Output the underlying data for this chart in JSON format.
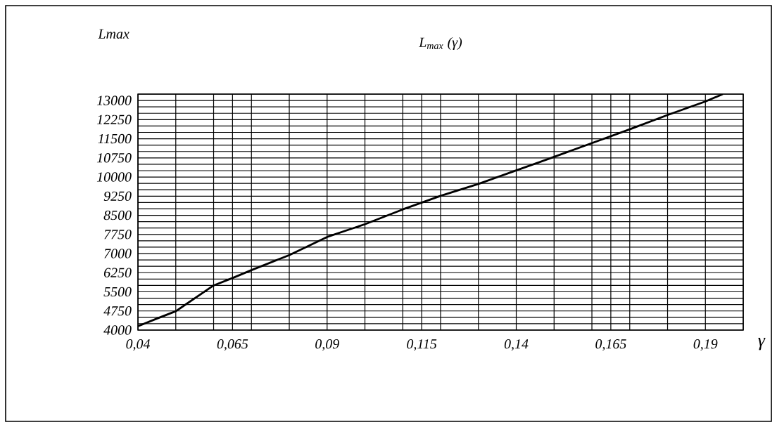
{
  "chart_data": {
    "type": "line",
    "title": "*L*$_{max}$ (*γ*)",
    "ylabel": "Lmax",
    "xlabel": "γ",
    "x": [
      0.04,
      0.045,
      0.05,
      0.06,
      0.065,
      0.07,
      0.08,
      0.09,
      0.1,
      0.11,
      0.12,
      0.13,
      0.14,
      0.15,
      0.16,
      0.17,
      0.18,
      0.19,
      0.1946
    ],
    "series": [
      {
        "color": "#000000",
        "values": [
          4150,
          4450,
          4740,
          5750,
          6040,
          6350,
          6940,
          7650,
          8150,
          8730,
          9260,
          9730,
          10260,
          10790,
          11330,
          11870,
          12430,
          12960,
          13250
        ]
      }
    ],
    "xlim": [
      0.04,
      0.2
    ],
    "ylim": [
      4000,
      13250
    ],
    "xticks": [
      {
        "value": 0.04,
        "label": "0,04"
      },
      {
        "value": 0.05,
        "label": null
      },
      {
        "value": 0.06,
        "label": null
      },
      {
        "value": 0.065,
        "label": "0,065"
      },
      {
        "value": 0.07,
        "label": null
      },
      {
        "value": 0.08,
        "label": null
      },
      {
        "value": 0.09,
        "label": "0,09"
      },
      {
        "value": 0.1,
        "label": null
      },
      {
        "value": 0.11,
        "label": null
      },
      {
        "value": 0.115,
        "label": "0,115"
      },
      {
        "value": 0.12,
        "label": null
      },
      {
        "value": 0.13,
        "label": null
      },
      {
        "value": 0.14,
        "label": "0,14"
      },
      {
        "value": 0.15,
        "label": null
      },
      {
        "value": 0.16,
        "label": null
      },
      {
        "value": 0.165,
        "label": "0,165"
      },
      {
        "value": 0.17,
        "label": null
      },
      {
        "value": 0.18,
        "label": null
      },
      {
        "value": 0.19,
        "label": "0,19"
      },
      {
        "value": 0.2,
        "label": null
      }
    ],
    "yticks": [
      4000,
      {
        "value": 4250,
        "label": null
      },
      {
        "value": 4500,
        "label": null
      },
      4750,
      {
        "value": 5000,
        "label": null
      },
      {
        "value": 5250,
        "label": null
      },
      5500,
      {
        "value": 5750,
        "label": null
      },
      {
        "value": 6000,
        "label": null
      },
      6250,
      {
        "value": 6500,
        "label": null
      },
      {
        "value": 6750,
        "label": null
      },
      7000,
      {
        "value": 7250,
        "label": null
      },
      {
        "value": 7500,
        "label": null
      },
      7750,
      {
        "value": 8000,
        "label": null
      },
      {
        "value": 8250,
        "label": null
      },
      8500,
      {
        "value": 8750,
        "label": null
      },
      {
        "value": 9000,
        "label": null
      },
      9250,
      {
        "value": 9500,
        "label": null
      },
      {
        "value": 9750,
        "label": null
      },
      10000,
      {
        "value": 10250,
        "label": null
      },
      {
        "value": 10500,
        "label": null
      },
      10750,
      {
        "value": 11000,
        "label": null
      },
      {
        "value": 11250,
        "label": null
      },
      11500,
      {
        "value": 11750,
        "label": null
      },
      {
        "value": 12000,
        "label": null
      },
      12250,
      {
        "value": 12500,
        "label": null
      },
      {
        "value": 12750,
        "label": null
      },
      13000,
      {
        "value": 13250,
        "label": null
      }
    ],
    "grid": true,
    "marker": "none",
    "line_style": "solid"
  }
}
